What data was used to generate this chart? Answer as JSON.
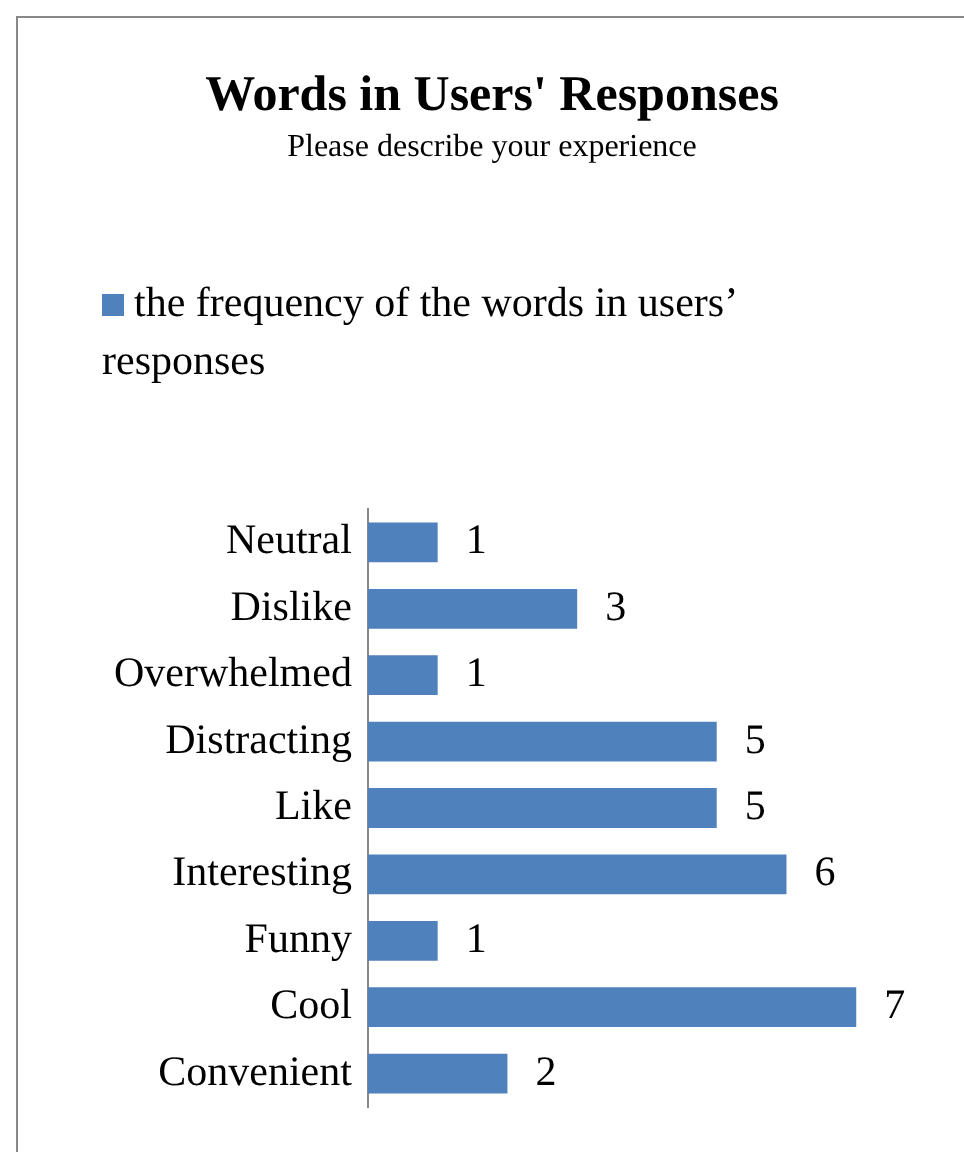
{
  "chart_data": {
    "type": "bar",
    "orientation": "horizontal",
    "title": "Words in Users' Responses",
    "subtitle": "Please describe your experience",
    "categories": [
      "Neutral",
      "Dislike",
      "Overwhelmed",
      "Distracting",
      "Like",
      "Interesting",
      "Funny",
      "Cool",
      "Convenient"
    ],
    "series": [
      {
        "name": "the frequency of the words in users’ responses",
        "color": "#4f81bd",
        "values": [
          1,
          3,
          1,
          5,
          5,
          6,
          1,
          7,
          2
        ]
      }
    ],
    "data_labels": true,
    "legend": "top",
    "tick_labels": "y"
  }
}
